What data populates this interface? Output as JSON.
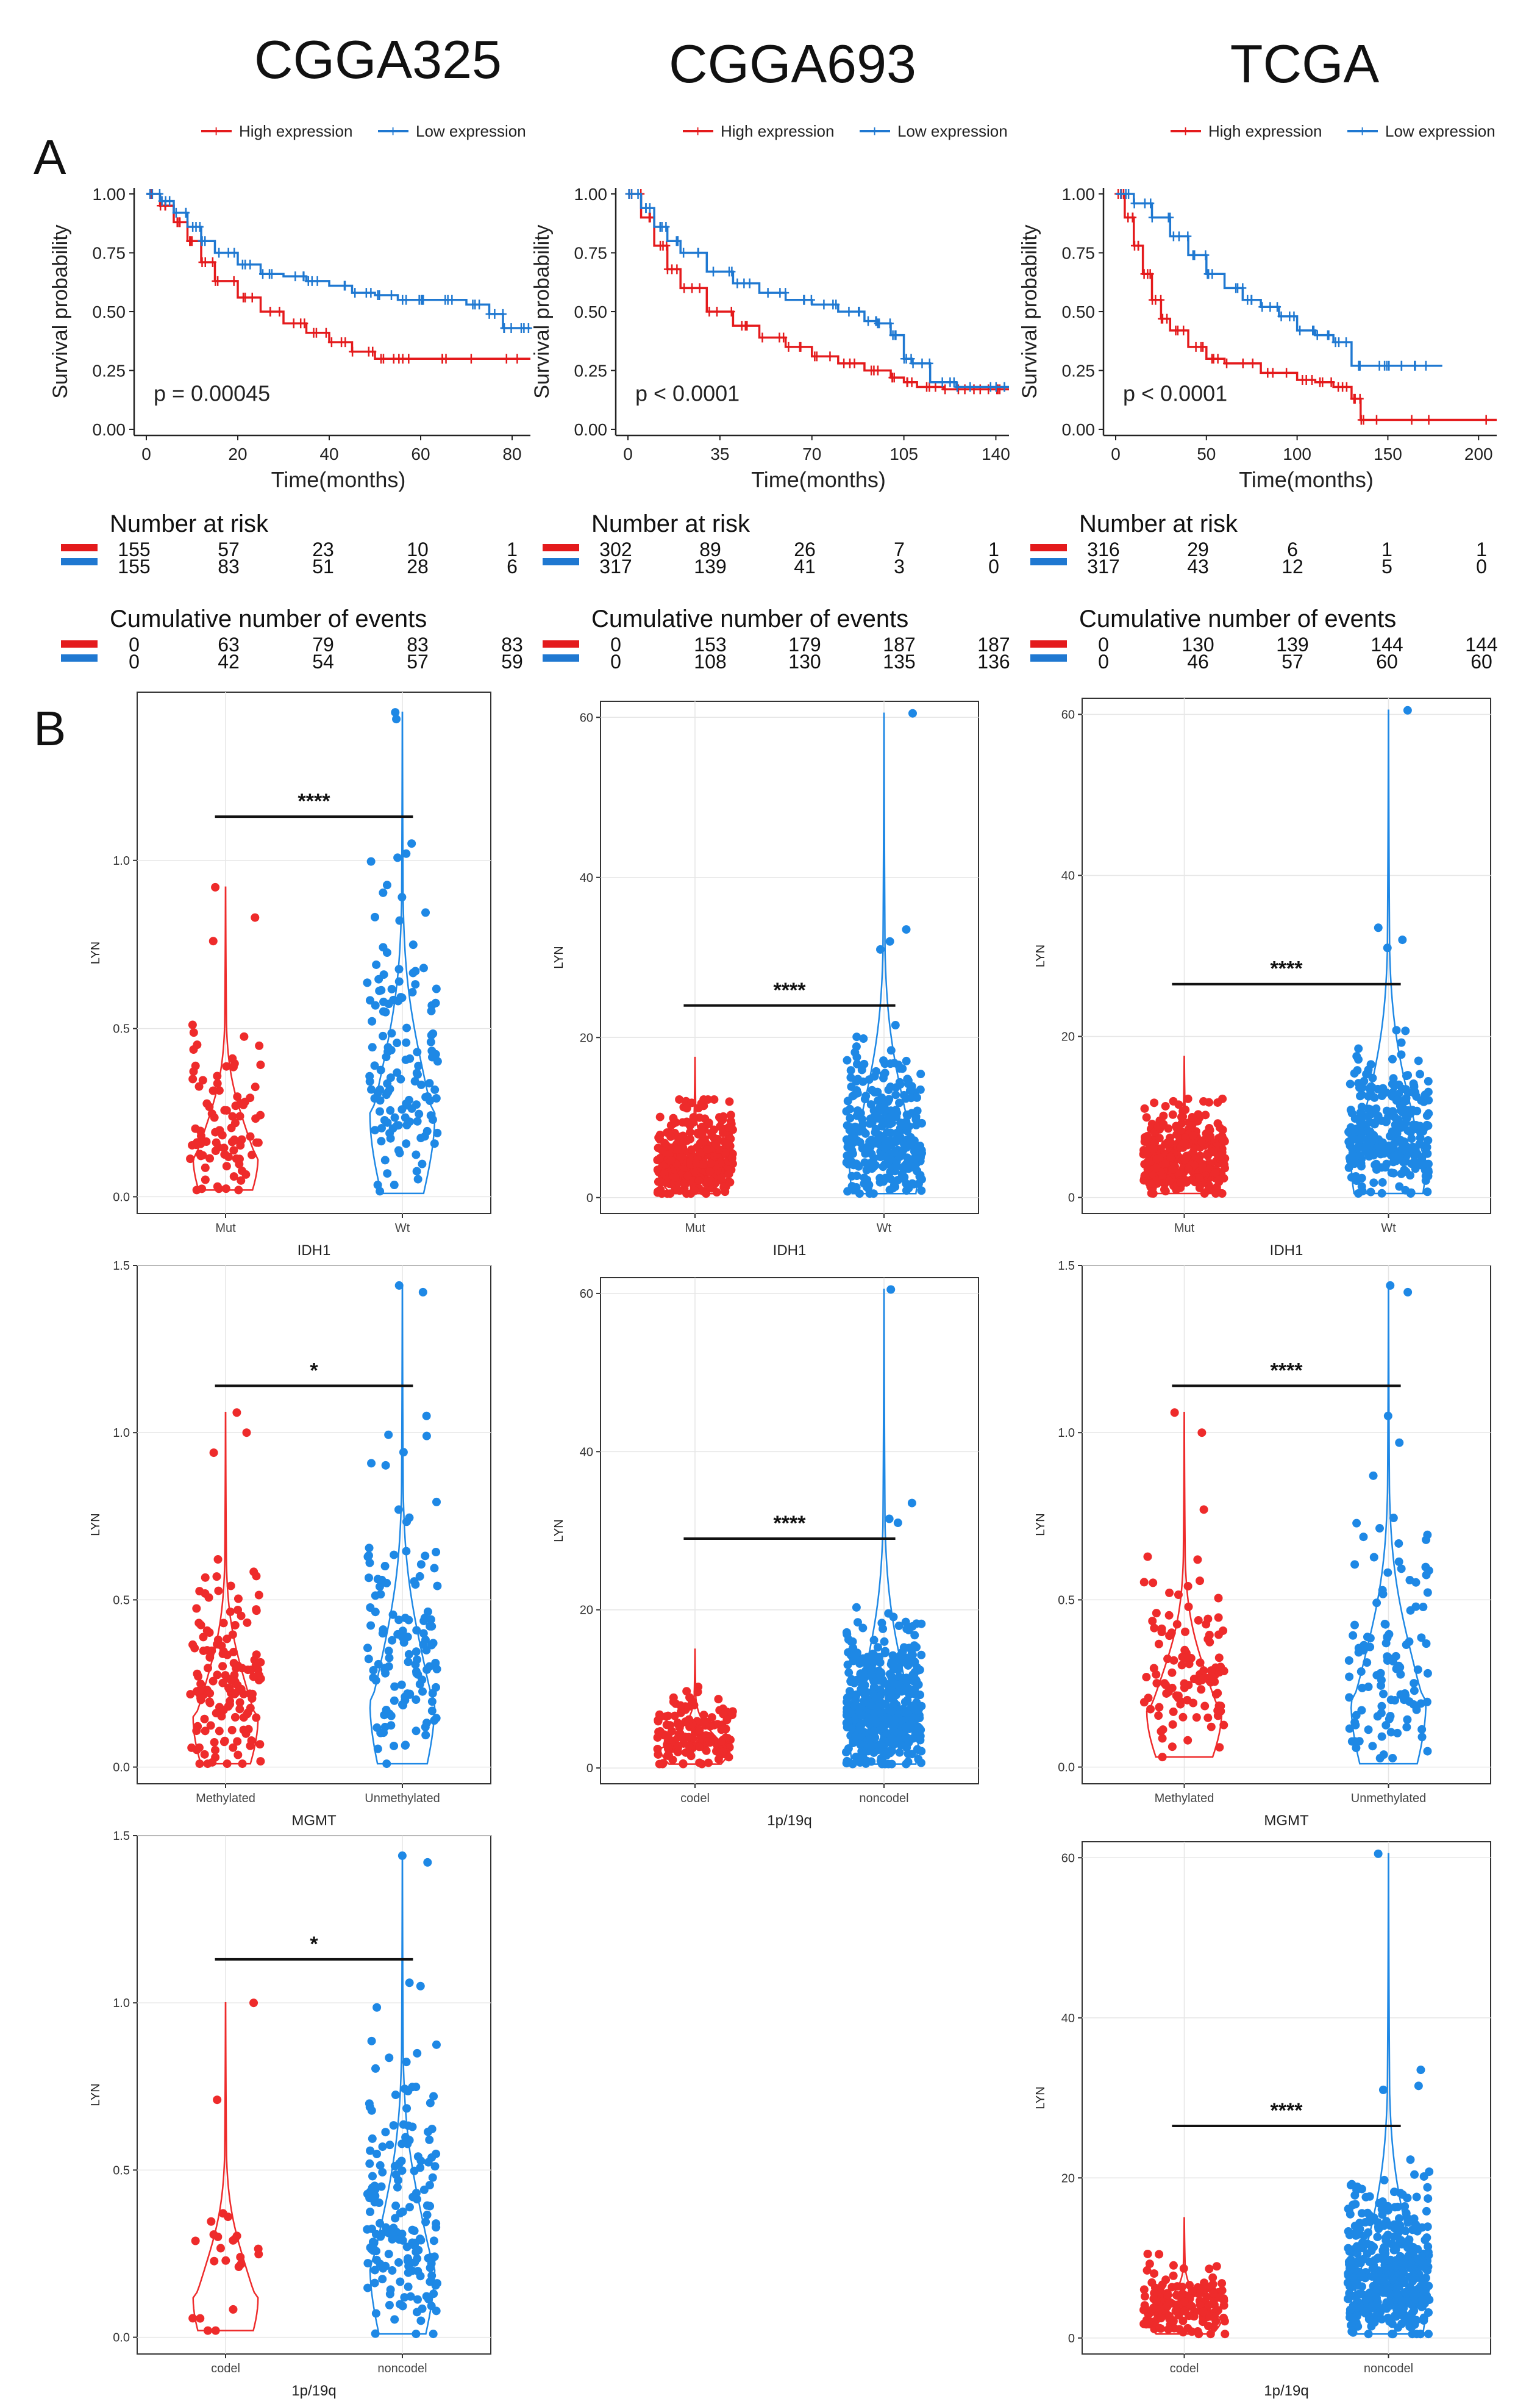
{
  "colors": {
    "high": "#e41a1c",
    "low": "#1f78d1",
    "red_violin": "#ee2b2b",
    "blue_violin": "#1e88e5",
    "axis": "#222222",
    "grid": "#e6e6e6"
  },
  "datasets": [
    "CGGA325",
    "CGGA693",
    "TCGA"
  ],
  "panel_labels": {
    "a": "A",
    "b": "B"
  },
  "legend": {
    "high": "High expression",
    "low": "Low expression"
  },
  "risk_title": "Number at risk",
  "events_title": "Cumulative number of events",
  "chart_data": [
    {
      "type": "line",
      "id": "km-cgga325",
      "dataset": "CGGA325",
      "xlabel": "Time(months)",
      "ylabel": "Survival probability",
      "xlim": [
        0,
        84
      ],
      "ylim": [
        0,
        1
      ],
      "xticks": [
        "0",
        "20",
        "40",
        "60",
        "80"
      ],
      "xtick_values": [
        0,
        20,
        40,
        60,
        80
      ],
      "yticks": [
        "0.00",
        "0.25",
        "0.50",
        "0.75",
        "1.00"
      ],
      "ytick_values": [
        0,
        0.25,
        0.5,
        0.75,
        1
      ],
      "pvalue": "p = 0.00045",
      "series": [
        {
          "name": "High expression",
          "x": [
            0,
            3,
            6,
            9,
            12,
            15,
            20,
            25,
            30,
            35,
            40,
            45,
            50,
            55,
            60,
            70,
            84
          ],
          "y": [
            1,
            0.95,
            0.88,
            0.8,
            0.71,
            0.63,
            0.56,
            0.5,
            0.45,
            0.41,
            0.37,
            0.33,
            0.3,
            0.3,
            0.3,
            0.3,
            0.3
          ]
        },
        {
          "name": "Low expression",
          "x": [
            0,
            3,
            6,
            9,
            12,
            15,
            20,
            25,
            30,
            35,
            40,
            45,
            50,
            55,
            60,
            65,
            70,
            75,
            78,
            80,
            84
          ],
          "y": [
            1,
            0.97,
            0.92,
            0.86,
            0.8,
            0.75,
            0.7,
            0.66,
            0.65,
            0.63,
            0.61,
            0.58,
            0.57,
            0.55,
            0.55,
            0.55,
            0.53,
            0.49,
            0.43,
            0.43,
            0.43
          ]
        }
      ],
      "risk": {
        "high": [
          "155",
          "57",
          "23",
          "10",
          "1"
        ],
        "low": [
          "155",
          "83",
          "51",
          "28",
          "6"
        ]
      },
      "events": {
        "high": [
          "0",
          "63",
          "79",
          "83",
          "83"
        ],
        "low": [
          "0",
          "42",
          "54",
          "57",
          "59"
        ]
      }
    },
    {
      "type": "line",
      "id": "km-cgga693",
      "dataset": "CGGA693",
      "xlabel": "Time(months)",
      "ylabel": "Survival probability",
      "xlim": [
        0,
        145
      ],
      "ylim": [
        0,
        1
      ],
      "xticks": [
        "0",
        "35",
        "70",
        "105",
        "140"
      ],
      "xtick_values": [
        0,
        35,
        70,
        105,
        140
      ],
      "yticks": [
        "0.00",
        "0.25",
        "0.50",
        "0.75",
        "1.00"
      ],
      "ytick_values": [
        0,
        0.25,
        0.5,
        0.75,
        1
      ],
      "pvalue": "p < 0.0001",
      "series": [
        {
          "name": "High expression",
          "x": [
            0,
            5,
            10,
            15,
            20,
            30,
            40,
            50,
            60,
            70,
            80,
            90,
            100,
            105,
            110,
            120,
            130,
            140,
            145
          ],
          "y": [
            1,
            0.9,
            0.78,
            0.68,
            0.6,
            0.5,
            0.44,
            0.39,
            0.35,
            0.31,
            0.28,
            0.25,
            0.22,
            0.2,
            0.18,
            0.17,
            0.17,
            0.17,
            0.17
          ]
        },
        {
          "name": "Low expression",
          "x": [
            0,
            5,
            10,
            15,
            20,
            30,
            40,
            50,
            60,
            70,
            80,
            90,
            95,
            100,
            105,
            108,
            115,
            125,
            140,
            145
          ],
          "y": [
            1,
            0.94,
            0.86,
            0.8,
            0.75,
            0.67,
            0.62,
            0.58,
            0.55,
            0.53,
            0.5,
            0.46,
            0.45,
            0.4,
            0.3,
            0.28,
            0.2,
            0.18,
            0.18,
            0.18
          ]
        }
      ],
      "risk": {
        "high": [
          "302",
          "89",
          "26",
          "7",
          "1"
        ],
        "low": [
          "317",
          "139",
          "41",
          "3",
          "0"
        ]
      },
      "events": {
        "high": [
          "0",
          "153",
          "179",
          "187",
          "187"
        ],
        "low": [
          "0",
          "108",
          "130",
          "135",
          "136"
        ]
      }
    },
    {
      "type": "line",
      "id": "km-tcga",
      "dataset": "TCGA",
      "xlabel": "Time(months)",
      "ylabel": "Survival probability",
      "xlim": [
        0,
        210
      ],
      "ylim": [
        0,
        1
      ],
      "xticks": [
        "0",
        "50",
        "100",
        "150",
        "200"
      ],
      "xtick_values": [
        0,
        50,
        100,
        150,
        200
      ],
      "yticks": [
        "0.00",
        "0.25",
        "0.50",
        "0.75",
        "1.00"
      ],
      "ytick_values": [
        0,
        0.25,
        0.5,
        0.75,
        1
      ],
      "pvalue": "p < 0.0001",
      "series": [
        {
          "name": "High expression",
          "x": [
            0,
            5,
            10,
            15,
            20,
            25,
            30,
            40,
            50,
            60,
            80,
            100,
            110,
            120,
            130,
            135,
            160,
            210
          ],
          "y": [
            1,
            0.9,
            0.78,
            0.66,
            0.55,
            0.47,
            0.42,
            0.35,
            0.3,
            0.28,
            0.24,
            0.21,
            0.2,
            0.18,
            0.13,
            0.04,
            0.04,
            0.04
          ]
        },
        {
          "name": "Low expression",
          "x": [
            0,
            10,
            20,
            30,
            40,
            50,
            60,
            70,
            80,
            90,
            100,
            110,
            120,
            130,
            140,
            150,
            160,
            180
          ],
          "y": [
            1,
            0.96,
            0.9,
            0.82,
            0.74,
            0.66,
            0.6,
            0.55,
            0.52,
            0.48,
            0.42,
            0.4,
            0.37,
            0.27,
            0.27,
            0.27,
            0.27,
            0.27
          ]
        }
      ],
      "risk": {
        "high": [
          "316",
          "29",
          "6",
          "1",
          "1"
        ],
        "low": [
          "317",
          "43",
          "12",
          "5",
          "0"
        ]
      },
      "events": {
        "high": [
          "0",
          "130",
          "139",
          "144",
          "144"
        ],
        "low": [
          "0",
          "46",
          "57",
          "60",
          "60"
        ]
      }
    },
    {
      "type": "scatter",
      "id": "violin-cgga325-idh1",
      "dataset": "CGGA325",
      "xlabel": "IDH1",
      "ylabel": "LYN",
      "categories": [
        "Mut",
        "Wt"
      ],
      "ylim": [
        -0.05,
        1.5
      ],
      "ytick_values": [
        0,
        0.5,
        1
      ],
      "yticks": [
        "0.0",
        "0.5",
        "1.0"
      ],
      "signif": "****",
      "bar_y": 1.13,
      "bar_x_frac": [
        0.22,
        0.78
      ],
      "groups": [
        {
          "name": "Mut",
          "n": 90,
          "mean": 0.2,
          "sd": 0.16,
          "min": 0.02,
          "max": 0.92,
          "violin_max": 0.92,
          "mode": 0.12,
          "seed": 11,
          "outliers": [
            0.92,
            0.76,
            0.83
          ]
        },
        {
          "name": "Wt",
          "n": 130,
          "mean": 0.42,
          "sd": 0.28,
          "min": 0.01,
          "max": 1.44,
          "violin_max": 1.44,
          "mode": 0.25,
          "seed": 12,
          "outliers": [
            1.44,
            1.42,
            1.05,
            1.02
          ]
        }
      ]
    },
    {
      "type": "scatter",
      "id": "violin-cgga693-idh1",
      "dataset": "CGGA693",
      "xlabel": "IDH1",
      "ylabel": "LYN",
      "categories": [
        "Mut",
        "Wt"
      ],
      "ylim": [
        -2,
        62
      ],
      "ytick_values": [
        0,
        20,
        40,
        60
      ],
      "yticks": [
        "0",
        "20",
        "40",
        "60"
      ],
      "signif": "****",
      "bar_y": 24,
      "bar_x_frac": [
        0.22,
        0.78
      ],
      "groups": [
        {
          "name": "Mut",
          "n": 330,
          "mean": 5,
          "sd": 4,
          "min": 0.5,
          "max": 17.5,
          "violin_max": 17.5,
          "mode": 3,
          "seed": 21,
          "outliers": []
        },
        {
          "name": "Wt",
          "n": 300,
          "mean": 9,
          "sd": 6,
          "min": 0.5,
          "max": 60.5,
          "violin_max": 60.5,
          "mode": 5,
          "seed": 22,
          "outliers": [
            60.5,
            33.5,
            32,
            31
          ]
        }
      ]
    },
    {
      "type": "scatter",
      "id": "violin-tcga-idh1",
      "dataset": "TCGA",
      "xlabel": "IDH1",
      "ylabel": "LYN",
      "categories": [
        "Mut",
        "Wt"
      ],
      "ylim": [
        -2,
        62
      ],
      "ytick_values": [
        0,
        20,
        40,
        60
      ],
      "yticks": [
        "0",
        "20",
        "40",
        "60"
      ],
      "signif": "****",
      "bar_y": 26.5,
      "bar_x_frac": [
        0.22,
        0.78
      ],
      "groups": [
        {
          "name": "Mut",
          "n": 330,
          "mean": 5,
          "sd": 4,
          "min": 0.5,
          "max": 17.5,
          "violin_max": 17.5,
          "mode": 3,
          "seed": 31,
          "outliers": []
        },
        {
          "name": "Wt",
          "n": 300,
          "mean": 9,
          "sd": 6,
          "min": 0.5,
          "max": 60.5,
          "violin_max": 60.5,
          "mode": 5,
          "seed": 32,
          "outliers": [
            60.5,
            33.5,
            32,
            31
          ]
        }
      ]
    },
    {
      "type": "scatter",
      "id": "violin-cgga325-mgmt",
      "dataset": "CGGA325",
      "xlabel": "MGMT",
      "ylabel": "LYN",
      "categories": [
        "Methylated",
        "Unmethylated"
      ],
      "ylim": [
        -0.05,
        1.5
      ],
      "ytick_values": [
        0,
        0.5,
        1,
        1.5
      ],
      "yticks": [
        "0.0",
        "0.5",
        "1.0",
        "1.5"
      ],
      "signif": "*",
      "bar_y": 1.14,
      "bar_x_frac": [
        0.22,
        0.78
      ],
      "groups": [
        {
          "name": "Methylated",
          "n": 140,
          "mean": 0.27,
          "sd": 0.2,
          "min": 0.01,
          "max": 1.06,
          "violin_max": 1.06,
          "mode": 0.15,
          "seed": 41,
          "outliers": [
            1.06,
            1.0,
            0.94
          ]
        },
        {
          "name": "Unmethylated",
          "n": 120,
          "mean": 0.38,
          "sd": 0.27,
          "min": 0.01,
          "max": 1.44,
          "violin_max": 1.44,
          "mode": 0.2,
          "seed": 42,
          "outliers": [
            1.44,
            1.42,
            1.05,
            0.99
          ]
        }
      ]
    },
    {
      "type": "scatter",
      "id": "violin-cgga693-1p19q",
      "dataset": "CGGA693",
      "xlabel": "1p/19q",
      "ylabel": "LYN",
      "categories": [
        "codel",
        "noncodel"
      ],
      "ylim": [
        -2,
        62
      ],
      "ytick_values": [
        0,
        20,
        40,
        60
      ],
      "yticks": [
        "0",
        "20",
        "40",
        "60"
      ],
      "signif": "****",
      "bar_y": 29,
      "bar_x_frac": [
        0.22,
        0.78
      ],
      "groups": [
        {
          "name": "codel",
          "n": 150,
          "mean": 4,
          "sd": 3,
          "min": 0.5,
          "max": 15,
          "violin_max": 15,
          "mode": 2.5,
          "seed": 51,
          "outliers": []
        },
        {
          "name": "noncodel",
          "n": 450,
          "mean": 9,
          "sd": 6,
          "min": 0.5,
          "max": 60.5,
          "violin_max": 60.5,
          "mode": 5,
          "seed": 52,
          "outliers": [
            60.5,
            33.5,
            31.5,
            31
          ]
        }
      ]
    },
    {
      "type": "scatter",
      "id": "violin-tcga-mgmt",
      "dataset": "TCGA",
      "xlabel": "MGMT",
      "ylabel": "LYN",
      "categories": [
        "Methylated",
        "Unmethylated"
      ],
      "ylim": [
        -0.05,
        1.5
      ],
      "ytick_values": [
        0,
        0.5,
        1,
        1.5
      ],
      "yticks": [
        "0.0",
        "0.5",
        "1.0",
        "1.5"
      ],
      "signif": "****",
      "bar_y": 1.14,
      "bar_x_frac": [
        0.22,
        0.78
      ],
      "groups": [
        {
          "name": "Methylated",
          "n": 110,
          "mean": 0.3,
          "sd": 0.2,
          "min": 0.03,
          "max": 1.06,
          "violin_max": 1.06,
          "mode": 0.17,
          "seed": 61,
          "outliers": [
            1.06,
            1.0,
            0.77
          ]
        },
        {
          "name": "Unmethylated",
          "n": 110,
          "mean": 0.38,
          "sd": 0.27,
          "min": 0.01,
          "max": 1.44,
          "violin_max": 1.44,
          "mode": 0.2,
          "seed": 62,
          "outliers": [
            1.44,
            1.42,
            1.05,
            0.97
          ]
        }
      ]
    },
    {
      "type": "scatter",
      "id": "violin-cgga325-1p19q",
      "dataset": "CGGA325",
      "xlabel": "1p/19q",
      "ylabel": "LYN",
      "categories": [
        "codel",
        "noncodel"
      ],
      "ylim": [
        -0.05,
        1.5
      ],
      "ytick_values": [
        0,
        0.5,
        1,
        1.5
      ],
      "yticks": [
        "0.0",
        "0.5",
        "1.0",
        "1.5"
      ],
      "signif": "*",
      "bar_y": 1.13,
      "bar_x_frac": [
        0.22,
        0.78
      ],
      "groups": [
        {
          "name": "codel",
          "n": 22,
          "mean": 0.18,
          "sd": 0.2,
          "min": 0.02,
          "max": 1.0,
          "violin_max": 1.0,
          "mode": 0.12,
          "seed": 71,
          "outliers": [
            1.0,
            0.71
          ]
        },
        {
          "name": "noncodel",
          "n": 170,
          "mean": 0.4,
          "sd": 0.27,
          "min": 0.01,
          "max": 1.44,
          "violin_max": 1.44,
          "mode": 0.22,
          "seed": 72,
          "outliers": [
            1.44,
            1.42,
            1.06,
            1.05
          ]
        }
      ]
    },
    {
      "type": "scatter",
      "id": "violin-tcga-1p19q",
      "dataset": "TCGA",
      "xlabel": "1p/19q",
      "ylabel": "LYN",
      "categories": [
        "codel",
        "noncodel"
      ],
      "ylim": [
        -2,
        62
      ],
      "ytick_values": [
        0,
        20,
        40,
        60
      ],
      "yticks": [
        "0",
        "20",
        "40",
        "60"
      ],
      "signif": "****",
      "bar_y": 26.5,
      "bar_x_frac": [
        0.22,
        0.78
      ],
      "groups": [
        {
          "name": "codel",
          "n": 160,
          "mean": 4,
          "sd": 3,
          "min": 0.5,
          "max": 15,
          "violin_max": 15,
          "mode": 2.5,
          "seed": 81,
          "outliers": []
        },
        {
          "name": "noncodel",
          "n": 450,
          "mean": 9,
          "sd": 6,
          "min": 0.5,
          "max": 60.5,
          "violin_max": 60.5,
          "mode": 5,
          "seed": 82,
          "outliers": [
            60.5,
            33.5,
            31.5,
            31
          ]
        }
      ]
    }
  ]
}
